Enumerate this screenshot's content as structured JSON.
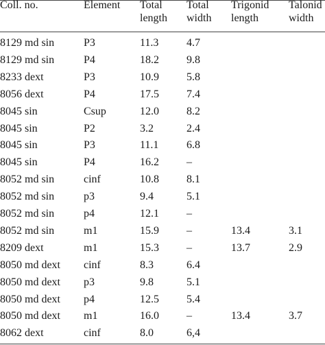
{
  "table": {
    "headers": [
      [
        "Coll. no."
      ],
      [
        "Element"
      ],
      [
        "Total",
        "length"
      ],
      [
        "Total",
        "width"
      ],
      [
        "Trigonid",
        "length"
      ],
      [
        "Talonid",
        "width"
      ]
    ],
    "rows": [
      [
        "8129 md sin",
        "P3",
        "11.3",
        "4.7",
        "",
        ""
      ],
      [
        "8129 md sin",
        "P4",
        "18.2",
        "9.8",
        "",
        ""
      ],
      [
        "8233 dext",
        "P3",
        "10.9",
        "5.8",
        "",
        ""
      ],
      [
        "8056 dext",
        "P4",
        "17.5",
        "7.4",
        "",
        ""
      ],
      [
        "8045 sin",
        "Csup",
        "12.0",
        "8.2",
        "",
        ""
      ],
      [
        "8045 sin",
        "P2",
        "3.2",
        "2.4",
        "",
        ""
      ],
      [
        "8045 sin",
        "P3",
        "11.1",
        "6.8",
        "",
        ""
      ],
      [
        "8045 sin",
        "P4",
        "16.2",
        "–",
        "",
        ""
      ],
      [
        "8052 md sin",
        "cinf",
        "10.8",
        "8.1",
        "",
        ""
      ],
      [
        "8052 md sin",
        "p3",
        "9.4",
        "5.1",
        "",
        ""
      ],
      [
        "8052 md sin",
        "p4",
        "12.1",
        "–",
        "",
        ""
      ],
      [
        "8052 md sin",
        "m1",
        "15.9",
        "–",
        "13.4",
        "3.1"
      ],
      [
        "8209 dext",
        "m1",
        "15.3",
        "–",
        "13.7",
        "2.9"
      ],
      [
        "8050 md dext",
        "cinf",
        "8.3",
        "6.4",
        "",
        ""
      ],
      [
        "8050 md dext",
        "p3",
        "9.8",
        "5.1",
        "",
        ""
      ],
      [
        "8050 md dext",
        "p4",
        "12.5",
        "5.4",
        "",
        ""
      ],
      [
        "8050 md dext",
        "m1",
        "16.0",
        "–",
        "13.4",
        "3.7"
      ],
      [
        "8062 dext",
        "cinf",
        "8.0",
        "6,4",
        "",
        ""
      ]
    ]
  }
}
